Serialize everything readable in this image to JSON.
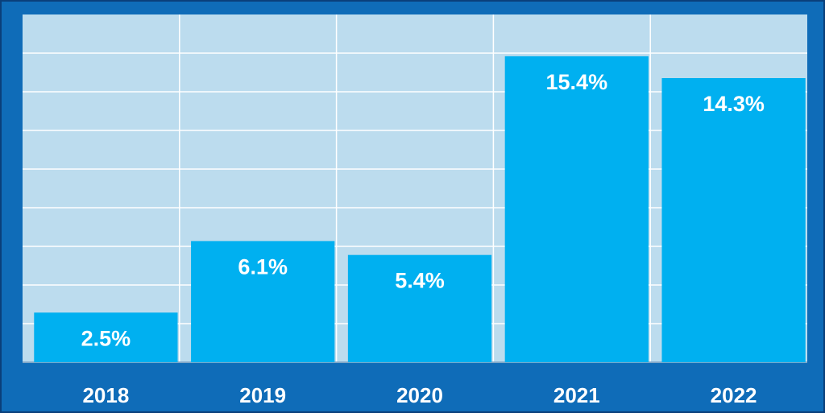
{
  "chart_data": {
    "type": "bar",
    "categories": [
      "2018",
      "2019",
      "2020",
      "2021",
      "2022"
    ],
    "values": [
      2.5,
      6.1,
      5.4,
      15.4,
      14.3
    ],
    "value_labels": [
      "2.5%",
      "6.1%",
      "5.4%",
      "15.4%",
      "14.3%"
    ],
    "title": "",
    "xlabel": "",
    "ylabel": "",
    "ylim": [
      0,
      17.5
    ],
    "grid": true,
    "legend": "none",
    "colors": {
      "bar": "#00b0f0",
      "plot_background": "#bcdcee",
      "grid": "#ffffff",
      "frame": "#0f6cb8",
      "text": "#ffffff"
    }
  }
}
